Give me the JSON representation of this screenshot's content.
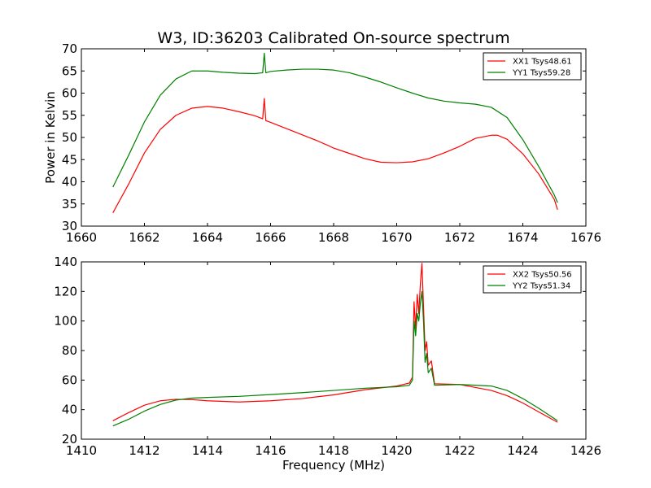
{
  "figure": {
    "title": "W3, ID:36203 Calibrated On-source spectrum"
  },
  "chart_data": [
    {
      "type": "line",
      "title": "W3, ID:36203 Calibrated On-source spectrum",
      "xlabel": "",
      "ylabel": "Power in Kelvin",
      "xlim": [
        1660,
        1676
      ],
      "ylim": [
        30,
        70
      ],
      "xticks": [
        1660,
        1662,
        1664,
        1666,
        1668,
        1670,
        1672,
        1674,
        1676
      ],
      "yticks": [
        30,
        35,
        40,
        45,
        50,
        55,
        60,
        65,
        70
      ],
      "grid": false,
      "legend_position": "top-right",
      "series": [
        {
          "name": "XX1 Tsys48.61",
          "color": "#ff0000",
          "x": [
            1661.0,
            1661.5,
            1662.0,
            1662.5,
            1663.0,
            1663.5,
            1664.0,
            1664.5,
            1665.0,
            1665.5,
            1665.75,
            1665.8,
            1665.85,
            1666.0,
            1666.5,
            1667.0,
            1667.5,
            1667.75,
            1667.8,
            1667.85,
            1668.0,
            1668.5,
            1669.0,
            1669.5,
            1670.0,
            1670.5,
            1671.0,
            1671.5,
            1672.0,
            1672.5,
            1673.0,
            1673.2,
            1673.5,
            1674.0,
            1674.5,
            1675.0,
            1675.1
          ],
          "y": [
            33.0,
            39.5,
            46.5,
            51.8,
            55.0,
            56.6,
            57.0,
            56.6,
            55.8,
            54.9,
            54.2,
            58.8,
            53.8,
            53.4,
            52.0,
            50.6,
            49.2,
            48.4,
            48.3,
            48.1,
            47.6,
            46.4,
            45.2,
            44.4,
            44.3,
            44.5,
            45.2,
            46.5,
            48.0,
            49.8,
            50.5,
            50.5,
            49.6,
            46.3,
            41.8,
            36.0,
            33.7
          ]
        },
        {
          "name": "YY1 Tsys59.28",
          "color": "#008000",
          "x": [
            1661.0,
            1661.5,
            1662.0,
            1662.5,
            1663.0,
            1663.5,
            1664.0,
            1664.5,
            1665.0,
            1665.5,
            1665.75,
            1665.8,
            1665.85,
            1666.0,
            1666.5,
            1667.0,
            1667.5,
            1668.0,
            1668.5,
            1669.0,
            1669.5,
            1670.0,
            1670.5,
            1671.0,
            1671.5,
            1672.0,
            1672.5,
            1673.0,
            1673.5,
            1674.0,
            1674.5,
            1675.0,
            1675.1
          ],
          "y": [
            38.8,
            46.0,
            53.5,
            59.5,
            63.2,
            65.0,
            65.0,
            64.7,
            64.5,
            64.4,
            64.6,
            69.0,
            64.6,
            64.9,
            65.2,
            65.4,
            65.4,
            65.2,
            64.6,
            63.6,
            62.5,
            61.2,
            60.0,
            58.9,
            58.2,
            57.8,
            57.5,
            56.8,
            54.5,
            49.5,
            43.5,
            37.0,
            35.3
          ]
        }
      ]
    },
    {
      "type": "line",
      "title": "",
      "xlabel": "Frequency (MHz)",
      "ylabel": "",
      "xlim": [
        1410,
        1426
      ],
      "ylim": [
        20,
        140
      ],
      "xticks": [
        1410,
        1412,
        1414,
        1416,
        1418,
        1420,
        1422,
        1424,
        1426
      ],
      "yticks": [
        20,
        40,
        60,
        80,
        100,
        120,
        140
      ],
      "grid": false,
      "legend_position": "top-right",
      "series": [
        {
          "name": "XX2 Tsys50.56",
          "color": "#ff0000",
          "x": [
            1411.0,
            1411.5,
            1412.0,
            1412.5,
            1413.0,
            1413.5,
            1414.0,
            1415.0,
            1416.0,
            1417.0,
            1418.0,
            1419.0,
            1420.0,
            1420.4,
            1420.5,
            1420.55,
            1420.6,
            1420.65,
            1420.7,
            1420.75,
            1420.8,
            1420.85,
            1420.9,
            1420.95,
            1421.0,
            1421.1,
            1421.2,
            1422.0,
            1423.0,
            1423.5,
            1424.0,
            1424.5,
            1425.1
          ],
          "y": [
            32.5,
            38.0,
            43.0,
            46.0,
            47.0,
            46.8,
            46.0,
            45.2,
            46.0,
            47.5,
            50.0,
            53.5,
            56.0,
            58.0,
            62.0,
            113.0,
            95.0,
            118.0,
            105.0,
            125.0,
            139.0,
            110.0,
            80.0,
            86.0,
            70.0,
            73.0,
            57.5,
            57.0,
            53.0,
            49.5,
            44.5,
            38.5,
            31.5
          ]
        },
        {
          "name": "YY2 Tsys51.34",
          "color": "#008000",
          "x": [
            1411.0,
            1411.5,
            1412.0,
            1412.5,
            1413.0,
            1413.5,
            1414.0,
            1415.0,
            1416.0,
            1417.0,
            1418.0,
            1419.0,
            1420.0,
            1420.4,
            1420.5,
            1420.55,
            1420.6,
            1420.65,
            1420.7,
            1420.75,
            1420.8,
            1420.85,
            1420.9,
            1420.95,
            1421.0,
            1421.1,
            1421.2,
            1422.0,
            1423.0,
            1423.5,
            1424.0,
            1424.5,
            1425.1
          ],
          "y": [
            29.0,
            33.5,
            39.0,
            43.5,
            46.5,
            47.8,
            48.3,
            49.0,
            50.2,
            51.5,
            53.0,
            54.5,
            55.5,
            56.5,
            60.0,
            100.0,
            90.0,
            105.0,
            100.0,
            112.0,
            120.0,
            100.0,
            72.0,
            78.0,
            65.0,
            68.0,
            56.5,
            57.0,
            56.0,
            53.0,
            47.5,
            41.0,
            32.5
          ]
        }
      ]
    }
  ]
}
